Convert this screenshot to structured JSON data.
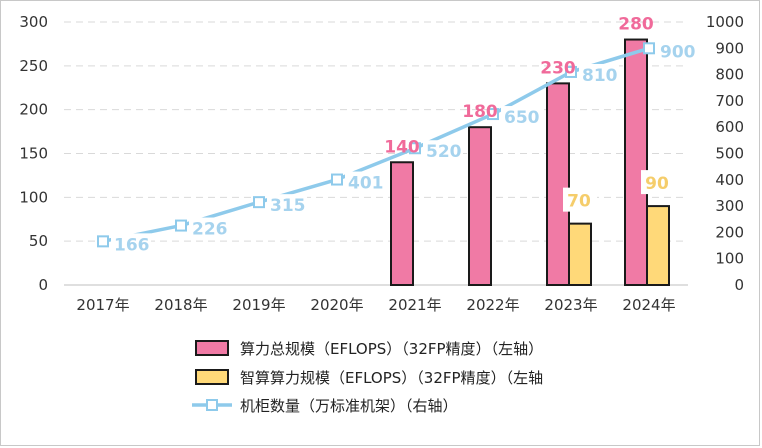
{
  "chart_data": {
    "type": "bar",
    "categories": [
      "2017年",
      "2018年",
      "2019年",
      "2020年",
      "2021年",
      "2022年",
      "2023年",
      "2024年"
    ],
    "y_left": {
      "ticks": [
        0,
        50,
        100,
        150,
        200,
        250,
        300
      ],
      "ylim": [
        0,
        300
      ]
    },
    "y_right": {
      "ticks": [
        0,
        100,
        200,
        300,
        400,
        500,
        600,
        700,
        800,
        900,
        1000
      ],
      "ylim": [
        0,
        1000
      ]
    },
    "series": [
      {
        "name": "算力总规模（EFLOPS）（32FP精度）（左轴）",
        "kind": "bar",
        "axis": "left",
        "color": "#F07AA5",
        "label_color": "#F06A9A",
        "values": [
          null,
          null,
          null,
          null,
          140,
          180,
          230,
          280
        ],
        "labels": [
          "",
          "",
          "",
          "",
          "140",
          "180",
          "230",
          "280"
        ]
      },
      {
        "name": "智算算力规模（EFLOPS）（32FP精度）（左轴",
        "kind": "bar",
        "axis": "left",
        "color": "#FFD979",
        "label_color": "#F5CD6B",
        "values": [
          null,
          null,
          null,
          null,
          null,
          null,
          70,
          90
        ],
        "labels": [
          "",
          "",
          "",
          "",
          "",
          "",
          "70",
          "90"
        ]
      },
      {
        "name": "机柜数量（万标准机架）（右轴）",
        "kind": "line",
        "axis": "right",
        "color": "#8ECAEB",
        "label_color": "#A6D3EE",
        "values": [
          166,
          226,
          315,
          401,
          520,
          650,
          810,
          900
        ],
        "labels": [
          "166",
          "226",
          "315",
          "401",
          "520",
          "650",
          "810",
          "900"
        ]
      }
    ],
    "gridlines": true,
    "legend_position": "bottom"
  }
}
